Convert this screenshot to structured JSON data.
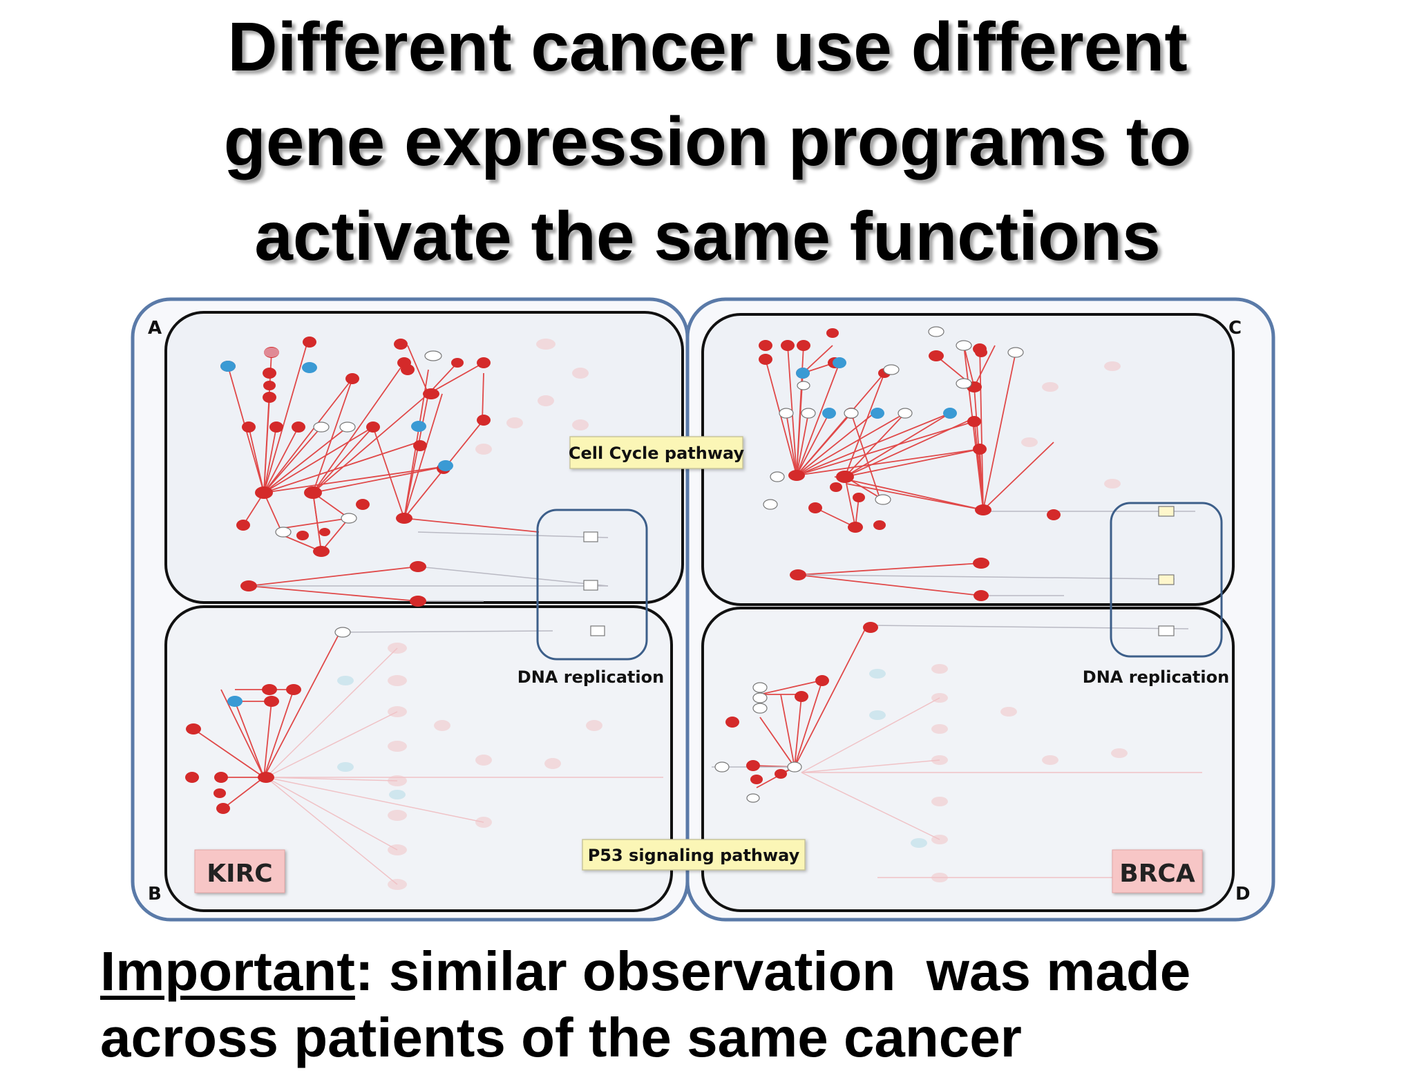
{
  "title_lines": [
    "Different cancer use different",
    "gene expression programs to",
    "activate the same functions"
  ],
  "figure": {
    "panel_letters": {
      "a": "A",
      "b": "B",
      "c": "C",
      "d": "D"
    },
    "callouts": {
      "cell_cycle": "Cell Cycle pathway",
      "dna_replication_left": "DNA replication",
      "dna_replication_right": "DNA replication",
      "p53": "P53 signaling pathway"
    },
    "cancer_labels": {
      "left": "KIRC",
      "right": "BRCA"
    },
    "colors": {
      "outer_border": "#5a7aa8",
      "panel_bg": "#eef1f6",
      "up_node": "#d42a2a",
      "down_node": "#3a9ad4",
      "edge": "#e04848",
      "callout_yellow": "#fbf6b6",
      "cancer_tag_pink": "#f7c6c6",
      "dna_box": "#3d5f8a"
    }
  },
  "note": {
    "important": "Important",
    "rest_line1": ": similar observation  was made",
    "line2": "across patients of the same cancer"
  }
}
